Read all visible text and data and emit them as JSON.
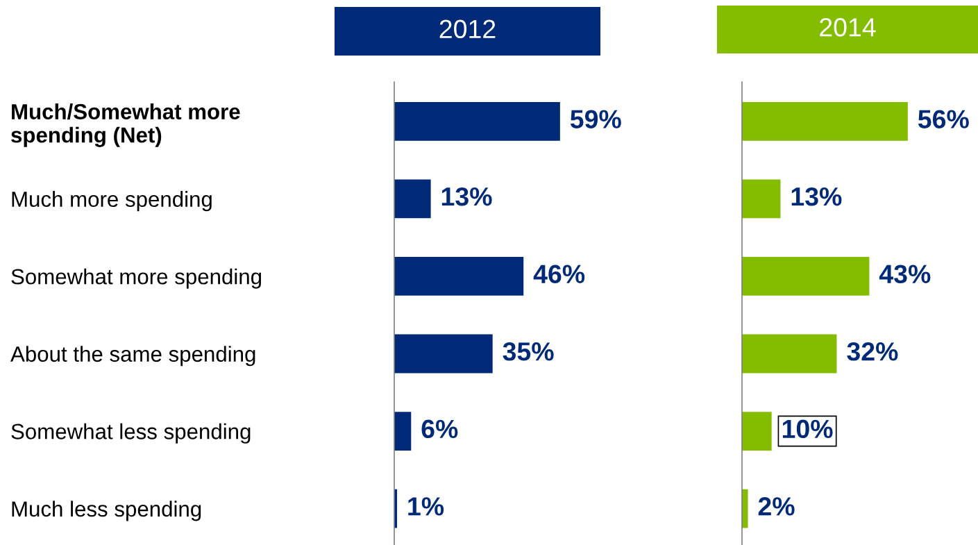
{
  "chart_data": [
    {
      "type": "bar",
      "orientation": "horizontal",
      "title": "2012",
      "categories": [
        "Much/Somewhat more\nspending (Net)",
        "Much more spending",
        "Somewhat more spending",
        "About the same spending",
        "Somewhat less spending",
        "Much less spending"
      ],
      "values": [
        59,
        13,
        46,
        35,
        6,
        1
      ],
      "color": "#002a78",
      "value_labels": [
        "59%",
        "13%",
        "46%",
        "35%",
        "6%",
        "1%"
      ]
    },
    {
      "type": "bar",
      "orientation": "horizontal",
      "title": "2014",
      "categories": [
        null,
        null,
        null,
        null,
        null,
        null
      ],
      "values": [
        56,
        13,
        43,
        32,
        10,
        2
      ],
      "color": "#84bd00",
      "value_labels": [
        "56%",
        "13%",
        "43%",
        "32%",
        "10%",
        "2%"
      ]
    }
  ]
}
